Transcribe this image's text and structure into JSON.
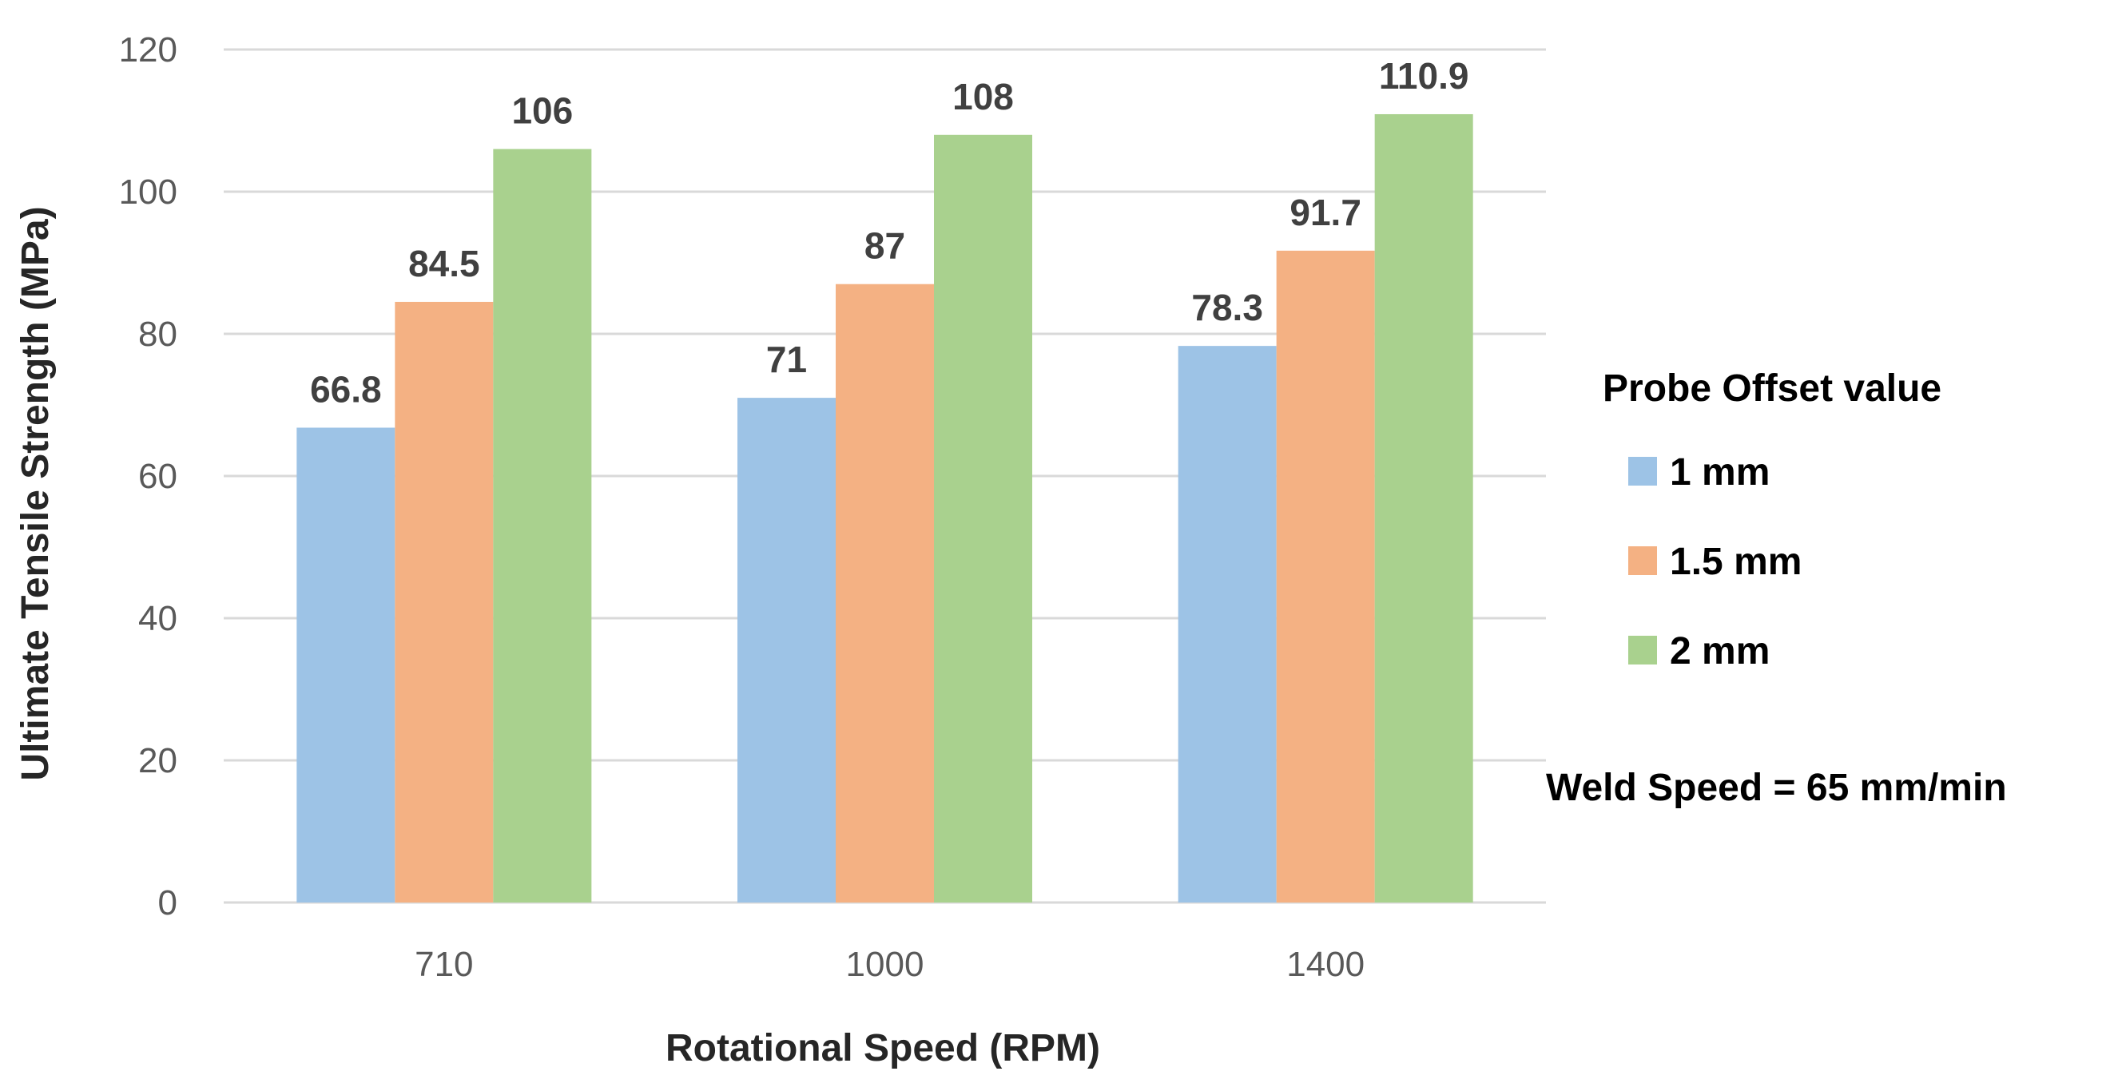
{
  "chart_data": {
    "type": "bar",
    "categories": [
      "710",
      "1000",
      "1400"
    ],
    "series": [
      {
        "name": "1 mm",
        "values": [
          66.8,
          71,
          78.3
        ],
        "labels": [
          "66.8",
          "71",
          "78.3"
        ],
        "color": "#9DC3E6"
      },
      {
        "name": "1.5 mm",
        "values": [
          84.5,
          87,
          91.7
        ],
        "labels": [
          "84.5",
          "87",
          "91.7"
        ],
        "color": "#F4B183"
      },
      {
        "name": "2 mm",
        "values": [
          106,
          108,
          110.9
        ],
        "labels": [
          "106",
          "108",
          "110.9"
        ],
        "color": "#A9D18E"
      }
    ],
    "title": "",
    "xlabel": "Rotational Speed (RPM)",
    "ylabel": "Ultimate Tensile Strength (MPa)",
    "ylim": [
      0,
      120
    ],
    "yticks": [
      "0",
      "20",
      "40",
      "60",
      "80",
      "100",
      "120"
    ],
    "grid": true,
    "legend": {
      "title": "Probe Offset value",
      "position": "right"
    },
    "annotation": "Weld Speed = 65 mm/min"
  }
}
